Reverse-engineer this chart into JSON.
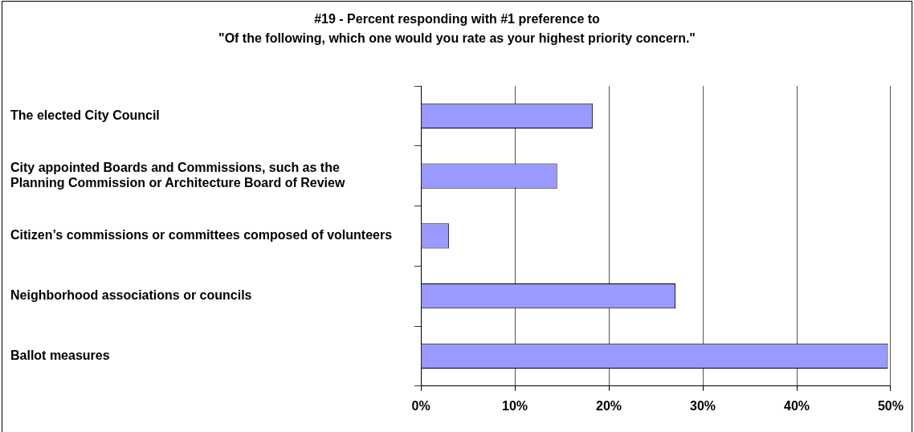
{
  "chart_data": {
    "type": "bar",
    "orientation": "horizontal",
    "title": "#19 - Percent responding with #1 preference to\n\"Of the following, which one would you rate as your highest priority concern.\"",
    "categories": [
      "The elected City Council",
      "City appointed Boards and Commissions, such as the Planning Commission or Architecture Board of Review",
      "Citizen’s commissions or committees composed of volunteers",
      "Neighborhood associations or councils",
      "Ballot measures"
    ],
    "values": [
      18.3,
      14.5,
      3.0,
      27.1,
      49.7
    ],
    "color": "#9999ff",
    "xlim": [
      0,
      50
    ],
    "xticks": [
      {
        "value": 0,
        "label": "0%"
      },
      {
        "value": 10,
        "label": "10%"
      },
      {
        "value": 20,
        "label": "20%"
      },
      {
        "value": 30,
        "label": "30%"
      },
      {
        "value": 40,
        "label": "40%"
      },
      {
        "value": 50,
        "label": "50%"
      }
    ],
    "grid": "x",
    "legend": false
  }
}
